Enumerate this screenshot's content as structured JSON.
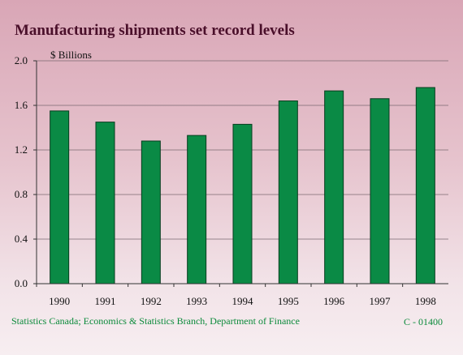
{
  "chart_data": {
    "type": "bar",
    "title": "Manufacturing shipments set record levels",
    "ylabel": "$ Billions",
    "xlabel": "",
    "categories": [
      "1990",
      "1991",
      "1992",
      "1993",
      "1994",
      "1995",
      "1996",
      "1997",
      "1998"
    ],
    "values": [
      1.55,
      1.45,
      1.28,
      1.33,
      1.43,
      1.64,
      1.73,
      1.66,
      1.76
    ],
    "ylim": [
      0,
      2.0
    ],
    "yticks": [
      "0.0",
      "0.4",
      "0.8",
      "1.2",
      "1.6",
      "2.0"
    ],
    "grid": true,
    "colors": {
      "bar": "#0a8a45",
      "title": "#4a0f2a",
      "source": "#0a8a3a"
    }
  },
  "footer": {
    "source": "Statistics Canada; Economics & Statistics Branch, Department of Finance",
    "code": "C - 01400"
  }
}
